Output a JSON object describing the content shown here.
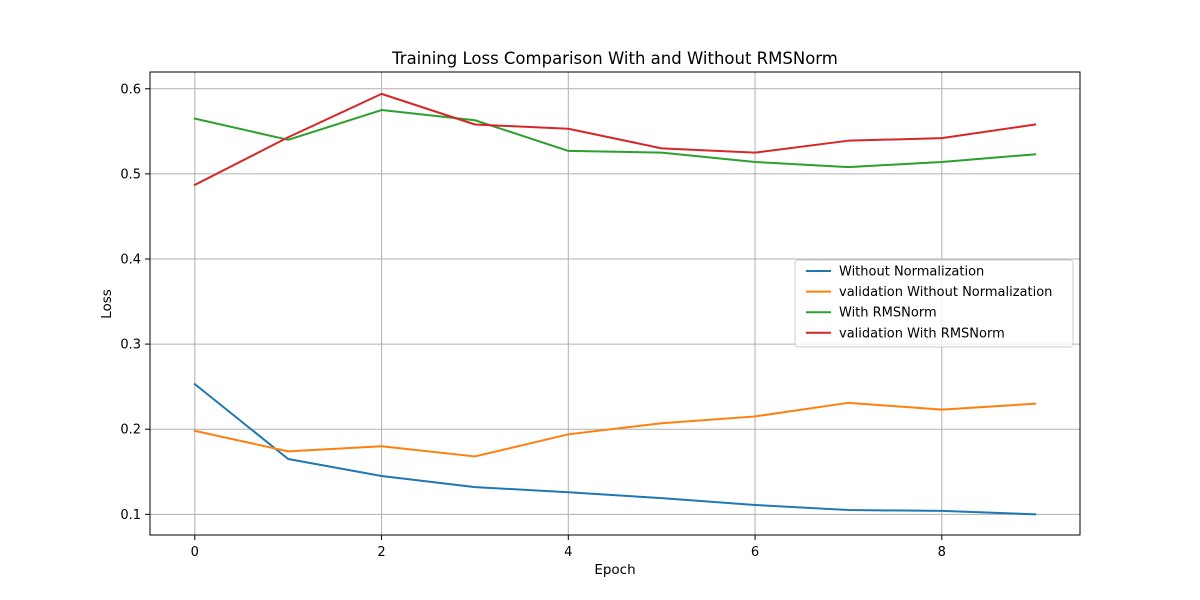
{
  "chart_data": {
    "type": "line",
    "title": "Training Loss Comparison With and Without RMSNorm",
    "xlabel": "Epoch",
    "ylabel": "Loss",
    "xlim": [
      -0.48,
      9.48
    ],
    "ylim": [
      0.0757,
      0.6197
    ],
    "xticks": [
      0,
      2,
      4,
      6,
      8
    ],
    "yticks": [
      0.1,
      0.2,
      0.3,
      0.4,
      0.5,
      0.6
    ],
    "xtick_labels": [
      "0",
      "2",
      "4",
      "6",
      "8"
    ],
    "ytick_labels": [
      "0.1",
      "0.2",
      "0.3",
      "0.4",
      "0.5",
      "0.6"
    ],
    "grid": true,
    "legend_position": "center-right",
    "x": [
      0,
      1,
      2,
      3,
      4,
      5,
      6,
      7,
      8,
      9
    ],
    "series": [
      {
        "name": "Without Normalization",
        "color": "#1f77b4",
        "values": [
          0.253,
          0.165,
          0.145,
          0.132,
          0.126,
          0.119,
          0.111,
          0.105,
          0.104,
          0.1
        ]
      },
      {
        "name": "validation Without Normalization",
        "color": "#ff7f0e",
        "values": [
          0.198,
          0.174,
          0.18,
          0.168,
          0.194,
          0.207,
          0.215,
          0.231,
          0.223,
          0.23
        ]
      },
      {
        "name": "With RMSNorm",
        "color": "#2ca02c",
        "values": [
          0.565,
          0.54,
          0.575,
          0.563,
          0.527,
          0.525,
          0.514,
          0.508,
          0.514,
          0.523
        ]
      },
      {
        "name": "validation With RMSNorm",
        "color": "#d62728",
        "values": [
          0.487,
          0.543,
          0.594,
          0.558,
          0.553,
          0.53,
          0.525,
          0.539,
          0.542,
          0.558
        ]
      }
    ]
  }
}
